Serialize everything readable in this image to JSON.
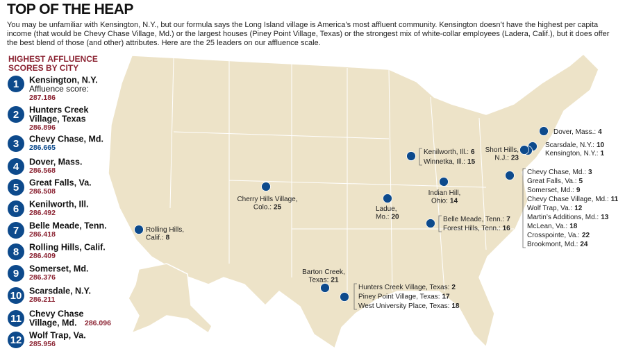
{
  "header": {
    "title": "TOP OF THE HEAP",
    "intro": "You may be unfamiliar with Kensington, N.Y., but our formula says the Long Island village is America’s most affluent community. Kensington doesn’t have the highest per capita income (that would be Chevy Chase Village, Md.) or the largest houses (Piney Point Village, Texas) or the strongest mix of white-collar employees (Ladera, Calif.), but it does offer the best blend of those (and other) attributes. Here are the 25 leaders on our affluence scale."
  },
  "ranking": {
    "heading": [
      "HIGHEST AFFLUENCE",
      "SCORES BY CITY"
    ],
    "score_label": "Affluence score:",
    "items": [
      {
        "rank": 1,
        "name": [
          "Kensington, N.Y."
        ],
        "score": 287.186
      },
      {
        "rank": 2,
        "name": [
          "Hunters Creek",
          "Village, Texas"
        ],
        "score": 286.896
      },
      {
        "rank": 3,
        "name": [
          "Chevy Chase, Md."
        ],
        "score": 286.665
      },
      {
        "rank": 4,
        "name": [
          "Dover, Mass."
        ],
        "score": 286.568
      },
      {
        "rank": 5,
        "name": [
          "Great Falls, Va."
        ],
        "score": 286.508
      },
      {
        "rank": 6,
        "name": [
          "Kenilworth, Ill."
        ],
        "score": 286.492
      },
      {
        "rank": 7,
        "name": [
          "Belle Meade, Tenn."
        ],
        "score": 286.418
      },
      {
        "rank": 8,
        "name": [
          "Rolling Hills, Calif."
        ],
        "score": 286.409
      },
      {
        "rank": 9,
        "name": [
          "Somerset, Md."
        ],
        "score": 286.376
      },
      {
        "rank": 10,
        "name": [
          "Scarsdale, N.Y."
        ],
        "score": 286.211
      },
      {
        "rank": 11,
        "name": [
          "Chevy Chase",
          "Village, Md."
        ],
        "score": 286.096
      },
      {
        "rank": 12,
        "name": [
          "Wolf Trap, Va."
        ],
        "score": 285.956
      }
    ]
  },
  "map": {
    "markers": [
      {
        "labels": [
          {
            "lines": [
              "Dover, Mass.:"
            ],
            "rank": 4
          }
        ]
      },
      {
        "labels": [
          {
            "lines": [
              "Scarsdale, N.Y.:"
            ],
            "rank": 10
          },
          {
            "lines": [
              "Kensington, N.Y.:"
            ],
            "rank": 1
          }
        ]
      },
      {
        "labels": [
          {
            "lines": [
              "Short Hills,",
              "N.J.:"
            ],
            "rank": 23
          }
        ]
      },
      {
        "labels": [
          {
            "lines": [
              "Kenilworth, Ill.:"
            ],
            "rank": 6
          },
          {
            "lines": [
              "Winnetka, Ill.:"
            ],
            "rank": 15
          }
        ]
      },
      {
        "labels": [
          {
            "lines": [
              "Chevy Chase, Md.:"
            ],
            "rank": 3
          },
          {
            "lines": [
              "Great Falls, Va.:"
            ],
            "rank": 5
          },
          {
            "lines": [
              "Somerset, Md.:"
            ],
            "rank": 9
          },
          {
            "lines": [
              "Chevy Chase Village, Md.:"
            ],
            "rank": 11
          },
          {
            "lines": [
              "Wolf Trap, Va.:"
            ],
            "rank": 12
          },
          {
            "lines": [
              "Martin’s Additions, Md.:"
            ],
            "rank": 13
          },
          {
            "lines": [
              "McLean, Va.:"
            ],
            "rank": 18
          },
          {
            "lines": [
              "Crosspointe, Va.:"
            ],
            "rank": 22
          },
          {
            "lines": [
              "Brookmont, Md.:"
            ],
            "rank": 24
          }
        ]
      },
      {
        "labels": [
          {
            "lines": [
              "Indian Hill,",
              "Ohio:"
            ],
            "rank": 14
          }
        ]
      },
      {
        "labels": [
          {
            "lines": [
              "Cherry Hills Village,",
              "Colo.:"
            ],
            "rank": 25
          }
        ]
      },
      {
        "labels": [
          {
            "lines": [
              "Ladue,",
              "Mo.:"
            ],
            "rank": 20
          }
        ]
      },
      {
        "labels": [
          {
            "lines": [
              "Belle Meade, Tenn.:"
            ],
            "rank": 7
          },
          {
            "lines": [
              "Forest Hills, Tenn.:"
            ],
            "rank": 16
          }
        ]
      },
      {
        "labels": [
          {
            "lines": [
              "Rolling Hills,",
              "Calif.:"
            ],
            "rank": 8
          }
        ]
      },
      {
        "labels": [
          {
            "lines": [
              "Barton Creek,",
              "Texas:"
            ],
            "rank": 21
          }
        ]
      },
      {
        "labels": [
          {
            "lines": [
              "Hunters Creek Village, Texas:"
            ],
            "rank": 2
          },
          {
            "lines": [
              "Piney Point Village, Texas:"
            ],
            "rank": 17
          },
          {
            "lines": [
              "West University Place, Texas:"
            ],
            "rank": 18
          }
        ]
      }
    ]
  }
}
